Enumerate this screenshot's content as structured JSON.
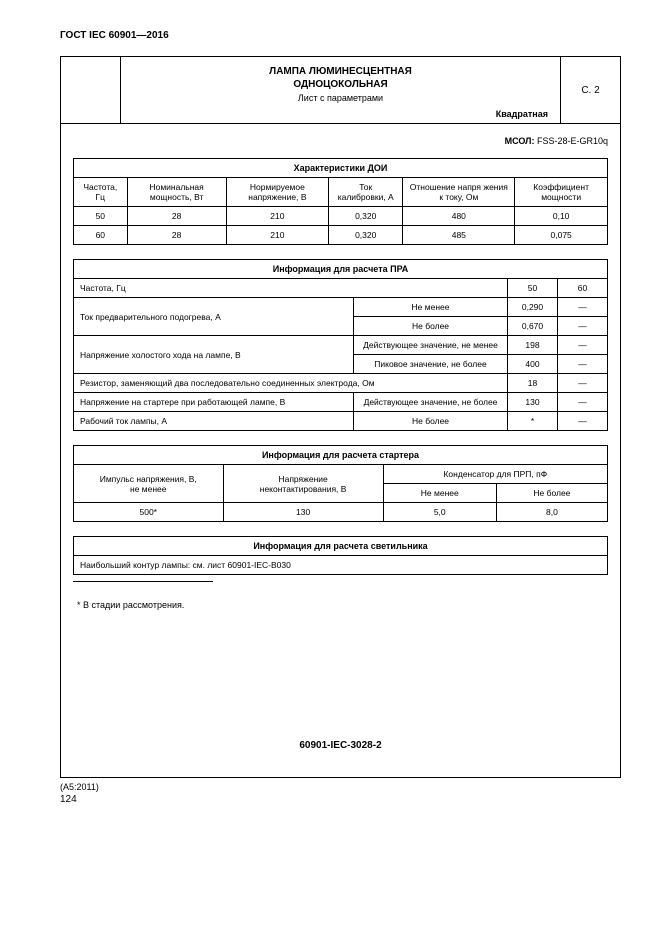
{
  "standardHeader": "ГОСТ IEC 60901—2016",
  "title": {
    "line1": "ЛАМПА ЛЮМИНЕСЦЕНТНАЯ",
    "line2": "ОДНОЦОКОЛЬНАЯ",
    "sub": "Лист с параметрами",
    "shape": "Квадратная",
    "pageRef": "С. 2"
  },
  "msol": {
    "label": "МСОЛ:",
    "value": " FSS-28-E-GR10q"
  },
  "doi": {
    "caption": "Характеристики ДОИ",
    "headers": [
      "Частота, Гц",
      "Номинальная мощность, Вт",
      "Нормируемое напряжение, В",
      "Ток калибровки, А",
      "Отношение напря жения к току, Ом",
      "Коэффициент мощности"
    ],
    "rows": [
      [
        "50",
        "28",
        "210",
        "0,320",
        "480",
        "0,10"
      ],
      [
        "60",
        "28",
        "210",
        "0,320",
        "485",
        "0,075"
      ]
    ]
  },
  "pra": {
    "caption": "Информация для расчета ПРА",
    "freqLabel": "Частота, Гц",
    "freqVals": [
      "50",
      "60"
    ],
    "rows": [
      {
        "param": "Ток предварительного подогрева, А",
        "cond": "Не менее",
        "v50": "0,290",
        "v60": "—",
        "rowspan": 2
      },
      {
        "param": "",
        "cond": "Не более",
        "v50": "0,670",
        "v60": "—"
      },
      {
        "param": "Напряжение холостого хода на лампе, В",
        "cond": "Действующее значение, не менее",
        "v50": "198",
        "v60": "—",
        "rowspan": 2
      },
      {
        "param": "",
        "cond": "Пиковое значение, не более",
        "v50": "400",
        "v60": "—"
      },
      {
        "param": "Резистор, заменяющий два последовательно соединенных электрода, Ом",
        "cond": "",
        "v50": "18",
        "v60": "—",
        "fullspan": true
      },
      {
        "param": "Напряжение на стартере при работающей лампе, В",
        "cond": "Действующее значение, не более",
        "v50": "130",
        "v60": "—"
      },
      {
        "param": "Рабочий ток лампы, А",
        "cond": "Не более",
        "v50": "*",
        "v60": "—"
      }
    ]
  },
  "starter": {
    "caption": "Информация для расчета стартера",
    "h1": "Импульс напряжения, В,\nне менее",
    "h2": "Напряжение\nнеконтактирования, В",
    "h3": "Конденсатор для ПРП, пФ",
    "h3a": "Не менее",
    "h3b": "Не более",
    "row": [
      "500*",
      "130",
      "5,0",
      "8,0"
    ]
  },
  "luminaire": {
    "caption": "Информация для расчета светильника",
    "text": "Наибольший контур лампы: см. лист 60901-IEC-B030"
  },
  "footnote": "* В стадии рассмотрения.",
  "docId": "60901-IEC-3028-2",
  "amendment": "(А5:2011)",
  "pageNumber": "124"
}
